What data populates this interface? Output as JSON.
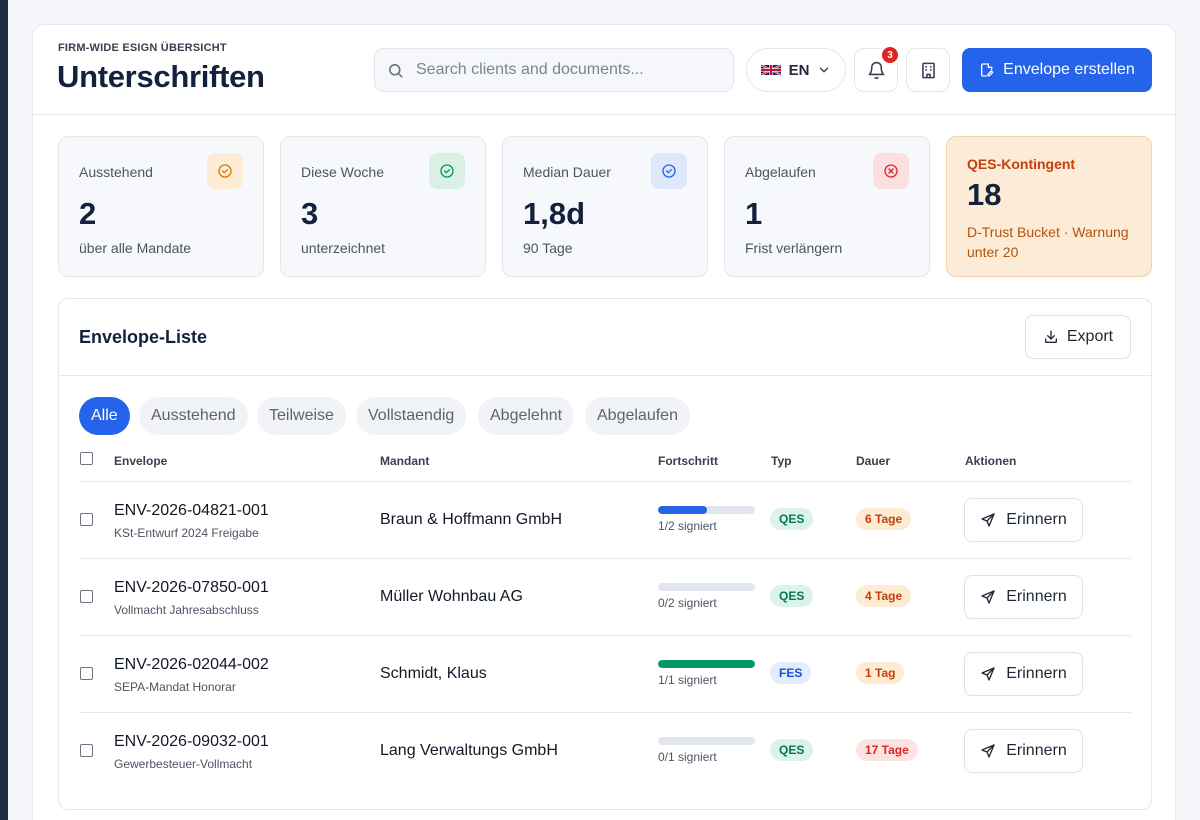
{
  "header": {
    "eyebrow": "FIRM-WIDE ESIGN ÜBERSICHT",
    "title": "Unterschriften",
    "search_placeholder": "Search clients and documents...",
    "language": "EN",
    "notifications_count": "3",
    "create_label": "Envelope erstellen"
  },
  "stats": [
    {
      "label": "Ausstehend",
      "value": "2",
      "sub": "über alle Mandate",
      "icon": "clock-check-icon",
      "color": "#d97706"
    },
    {
      "label": "Diese Woche",
      "value": "3",
      "sub": "unterzeichnet",
      "icon": "check-circle-icon",
      "color": "#059669"
    },
    {
      "label": "Median Dauer",
      "value": "1,8d",
      "sub": "90 Tage",
      "icon": "check-circle-icon",
      "color": "#2563eb"
    },
    {
      "label": "Abgelaufen",
      "value": "1",
      "sub": "Frist verlängern",
      "icon": "x-circle-icon",
      "color": "#dc2626"
    },
    {
      "label": "QES-Kontingent",
      "value": "18",
      "sub": "D-Trust Bucket · Warnung unter 20"
    }
  ],
  "list": {
    "title": "Envelope-Liste",
    "export_label": "Export",
    "filters": [
      "Alle",
      "Ausstehend",
      "Teilweise",
      "Vollstaendig",
      "Abgelehnt",
      "Abgelaufen"
    ],
    "active_filter": "Alle",
    "columns": {
      "envelope": "Envelope",
      "client": "Mandant",
      "progress": "Fortschritt",
      "type": "Typ",
      "duration": "Dauer",
      "actions": "Aktionen"
    },
    "remind_label": "Erinnern",
    "rows": [
      {
        "id": "ENV-2026-04821-001",
        "doc": "KSt-Entwurf 2024 Freigabe",
        "client": "Braun & Hoffmann GmbH",
        "progress": 0.5,
        "progress_text": "1/2 signiert",
        "type": "QES",
        "duration": "6 Tage",
        "duration_status": "warning"
      },
      {
        "id": "ENV-2026-07850-001",
        "doc": "Vollmacht Jahresabschluss",
        "client": "Müller Wohnbau AG",
        "progress": 0,
        "progress_text": "0/2 signiert",
        "type": "QES",
        "duration": "4 Tage",
        "duration_status": "warning"
      },
      {
        "id": "ENV-2026-02044-002",
        "doc": "SEPA-Mandat Honorar",
        "client": "Schmidt, Klaus",
        "progress": 1,
        "progress_text": "1/1 signiert",
        "type": "FES",
        "duration": "1 Tag",
        "duration_status": "warning"
      },
      {
        "id": "ENV-2026-09032-001",
        "doc": "Gewerbesteuer-Vollmacht",
        "client": "Lang Verwaltungs GmbH",
        "progress": 0,
        "progress_text": "0/1 signiert",
        "type": "QES",
        "duration": "17 Tage",
        "duration_status": "danger"
      }
    ]
  },
  "colors": {
    "primary": "#2563eb",
    "complete": "#059669",
    "warning_bg": "#fdebd3",
    "warning_text": "#c2410c",
    "danger_bg": "#fde2e2",
    "danger_text": "#dc2626",
    "qes_bg": "#dcf3e7",
    "qes_text": "#047857",
    "fes_bg": "#e3ecfd",
    "fes_text": "#1d4ed8"
  }
}
